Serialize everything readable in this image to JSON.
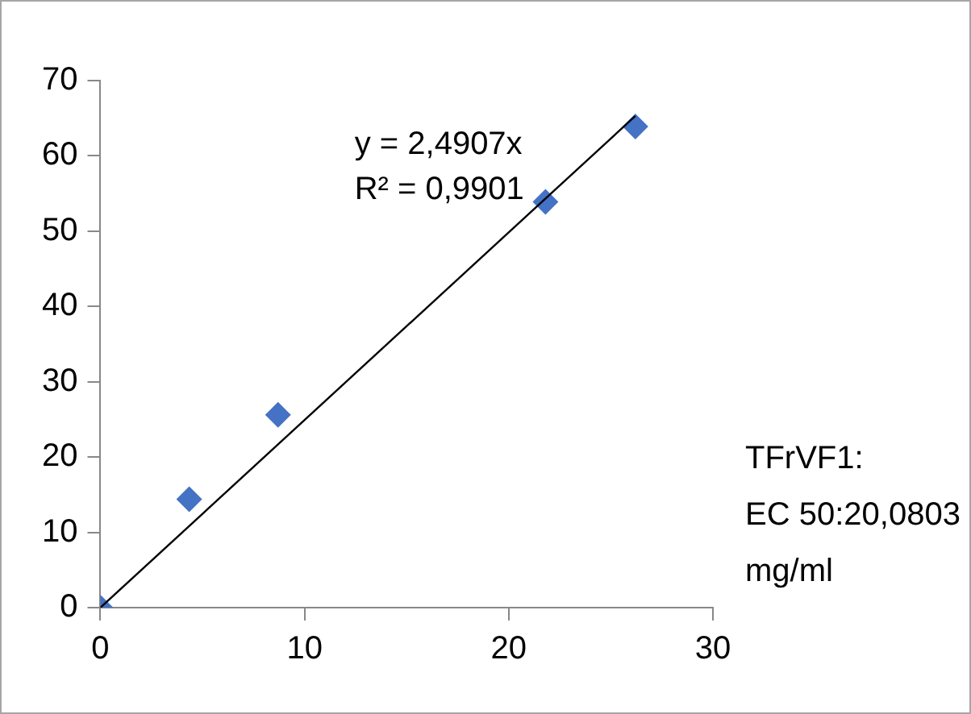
{
  "chart_data": {
    "type": "scatter",
    "xlim": [
      0,
      30
    ],
    "xticks": [
      0,
      10,
      20,
      30
    ],
    "ylim": [
      0,
      70
    ],
    "yticks": [
      0,
      10,
      20,
      30,
      40,
      50,
      60,
      70
    ],
    "grid": false,
    "legend": false,
    "series": [
      {
        "type": "scatter",
        "color": "#4472c4",
        "marker": "diamond",
        "x": [
          0,
          4.35,
          8.7,
          21.8,
          26.2
        ],
        "values": [
          0,
          14.4,
          25.6,
          53.9,
          63.9
        ]
      },
      {
        "type": "line",
        "color": "#000000",
        "marker": "none",
        "line_style": "solid",
        "x": [
          0,
          26.2
        ],
        "values": [
          0,
          65.3
        ]
      }
    ],
    "annotations": [
      "y = 2,4907x",
      "R² = 0,9901",
      "TFrVF1:\nEC 50:20,0803\nmg/ml"
    ]
  }
}
